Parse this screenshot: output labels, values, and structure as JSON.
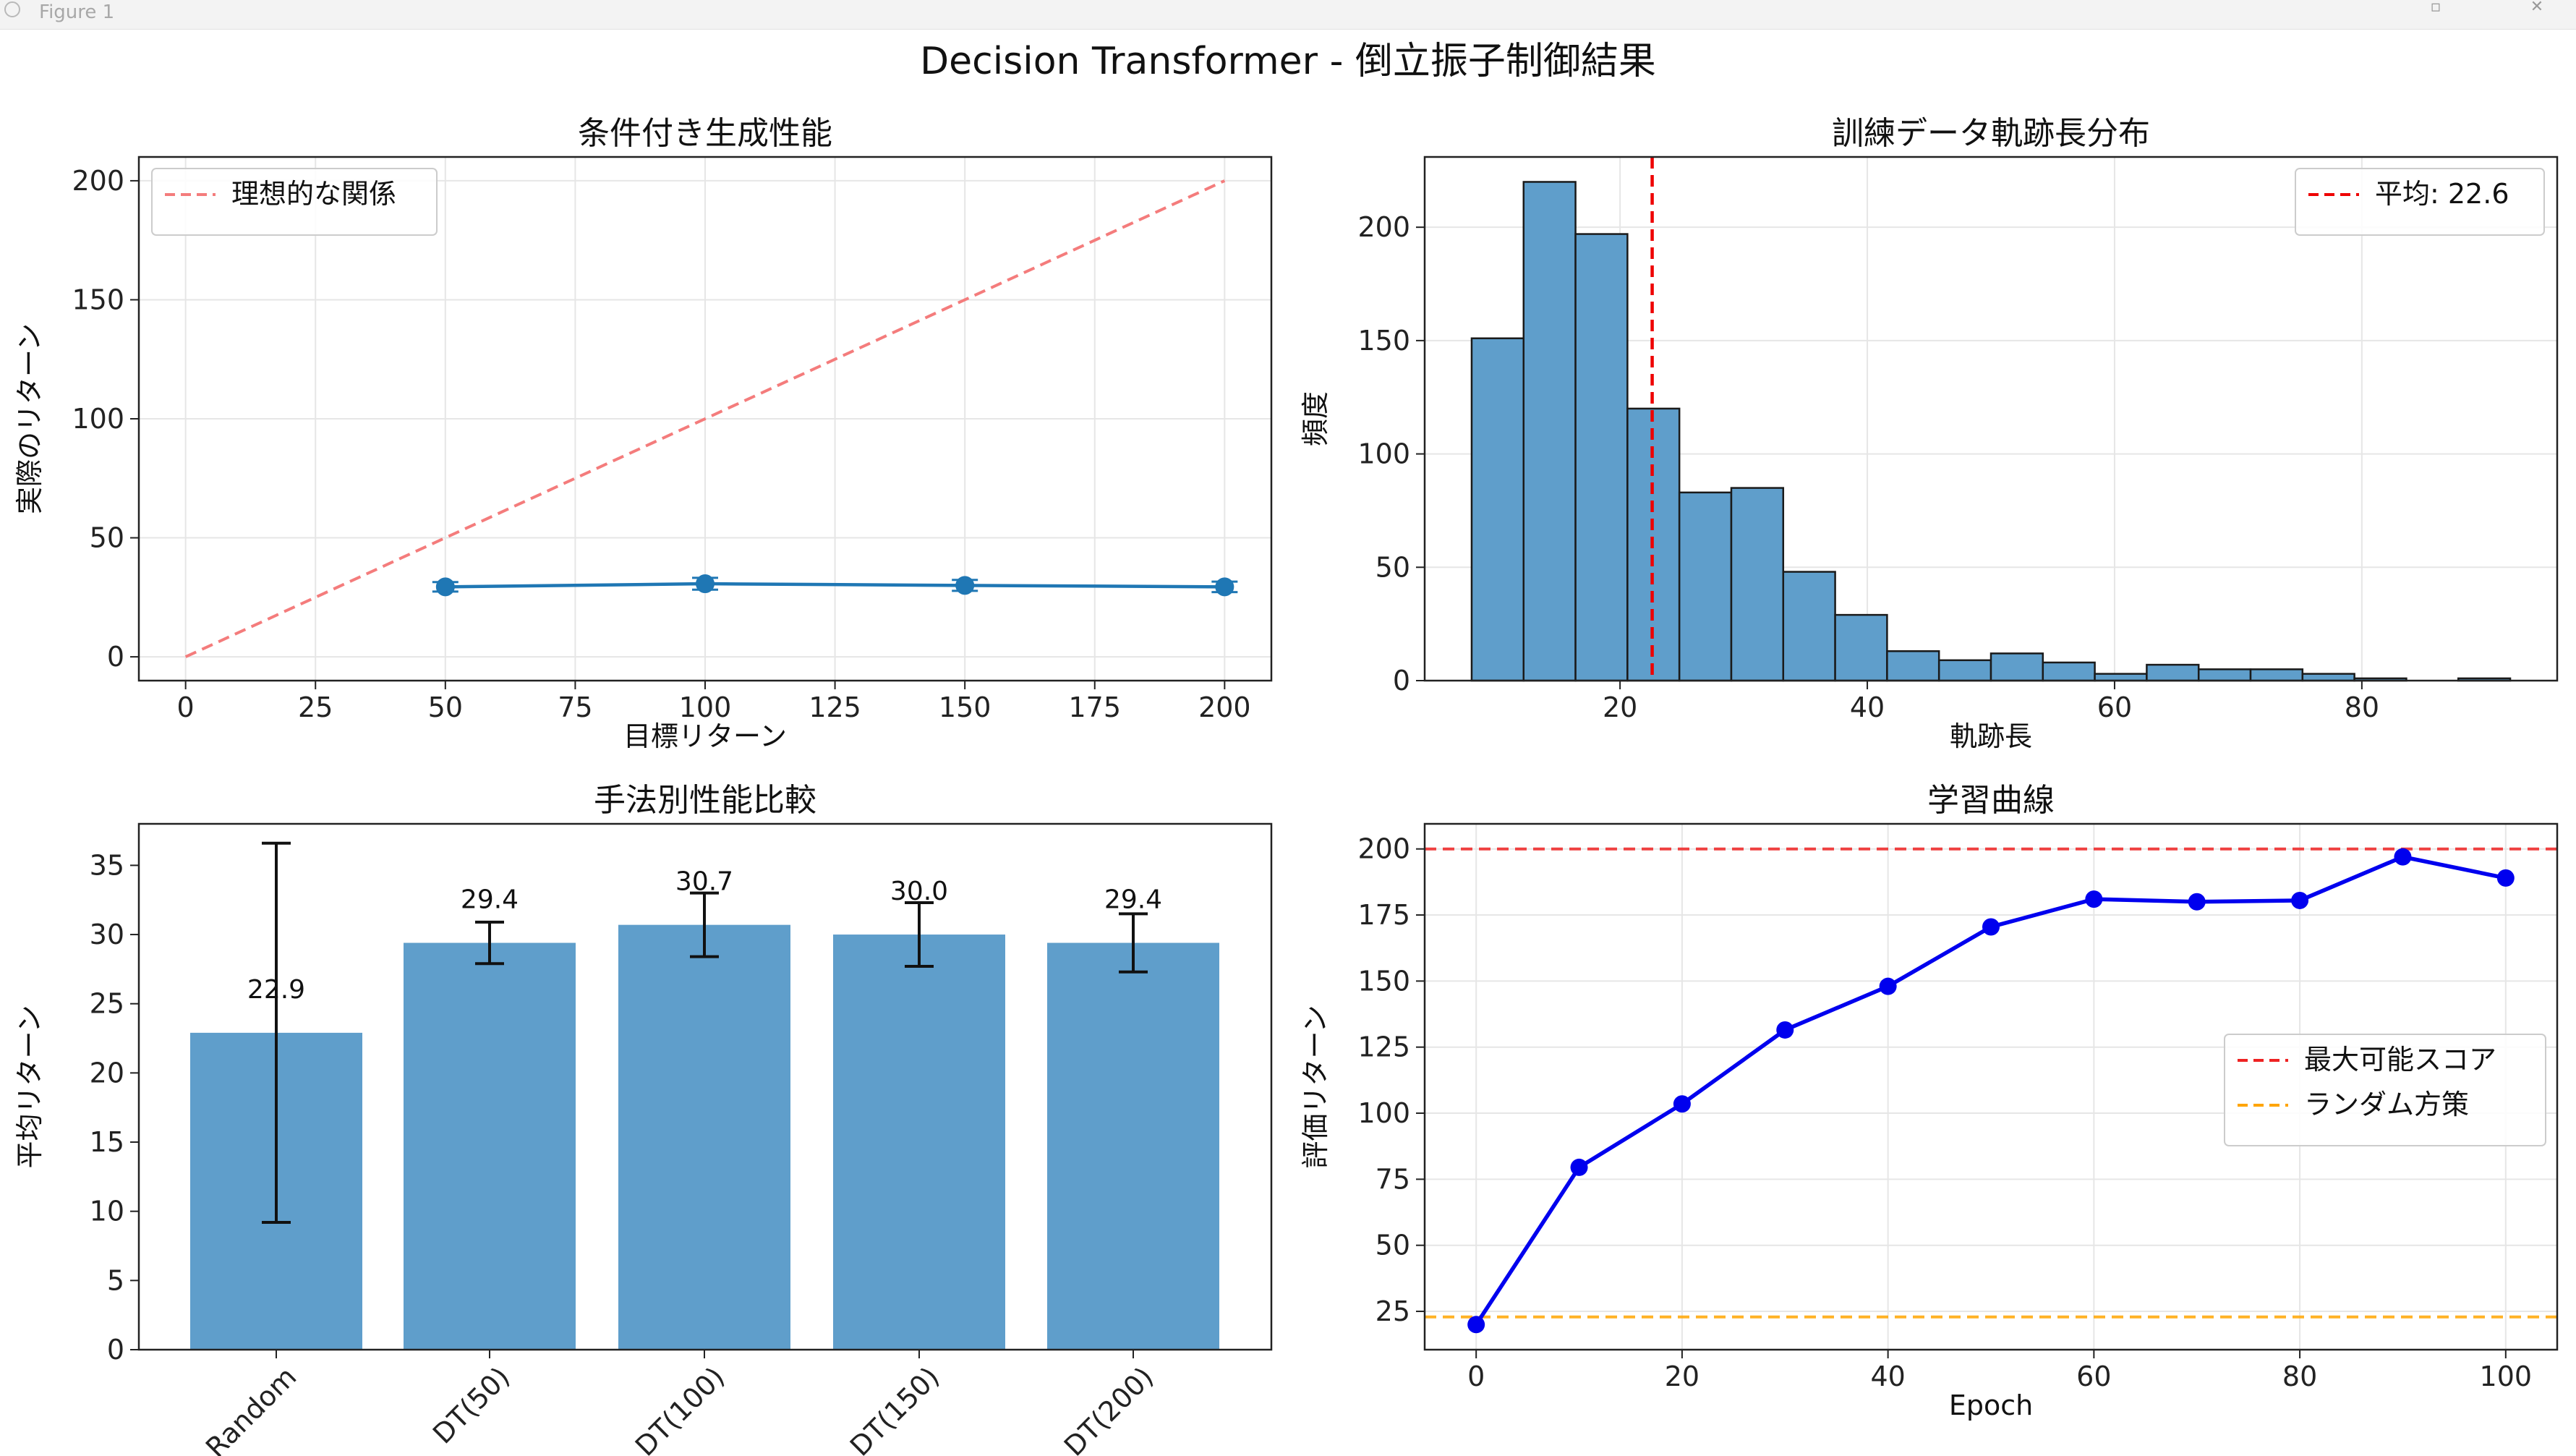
{
  "window": {
    "title": "Figure 1"
  },
  "figure": {
    "suptitle": "Decision Transformer - 倒立振子制御結果"
  },
  "colors": {
    "blue": "#1f77b4",
    "bar": "#5f9ecb",
    "ideal": "#f47c7c",
    "red": "#d62728",
    "pure_red": "#ee0000",
    "orange": "#ffa500",
    "curve": "#0000ee",
    "grid": "#e6e6e6"
  },
  "chart_data": [
    {
      "id": "ax1",
      "type": "line",
      "title": "条件付き生成性能",
      "xlabel": "目標リターン",
      "ylabel": "実際のリターン",
      "xlim": [
        -9,
        209
      ],
      "ylim": [
        -10,
        210
      ],
      "xticks": [
        0,
        25,
        50,
        75,
        100,
        125,
        150,
        175,
        200
      ],
      "yticks": [
        0,
        50,
        100,
        150,
        200
      ],
      "grid": true,
      "legend": {
        "placement": "upper-left",
        "entries": [
          {
            "label": "理想的な関係",
            "style": "dashed",
            "color": "#f47c7c"
          }
        ]
      },
      "series": [
        {
          "name": "理想的な関係",
          "style": "dashed",
          "x": [
            0,
            200
          ],
          "y": [
            0,
            200
          ]
        },
        {
          "style": "solid-marker-errorbar",
          "x": [
            50,
            100,
            150,
            200
          ],
          "y": [
            29.4,
            30.7,
            30.0,
            29.4
          ],
          "err": [
            2.0,
            2.5,
            2.3,
            2.2
          ]
        }
      ]
    },
    {
      "id": "ax2",
      "type": "bar",
      "subtype": "histogram",
      "title": "訓練データ軌跡長分布",
      "xlabel": "軌跡長",
      "ylabel": "頻度",
      "xlim": [
        4.2,
        95.8
      ],
      "ylim": [
        0,
        231
      ],
      "xticks": [
        20,
        40,
        60,
        80
      ],
      "yticks": [
        0,
        50,
        100,
        150,
        200
      ],
      "grid": true,
      "bin_edges": [
        8.0,
        12.2,
        16.4,
        20.6,
        24.8,
        29.0,
        33.2,
        37.4,
        41.6,
        45.8,
        50.0,
        54.2,
        58.4,
        62.6,
        66.8,
        71.0,
        75.2,
        79.4,
        83.6,
        87.8,
        92.0
      ],
      "counts": [
        151,
        220,
        197,
        120,
        83,
        85,
        48,
        29,
        13,
        9,
        12,
        8,
        3,
        7,
        5,
        5,
        3,
        1,
        0,
        1
      ],
      "mean_line": {
        "x": 22.6,
        "label": "平均: 22.6"
      },
      "legend": {
        "placement": "upper-right",
        "entries": [
          {
            "label": "平均: 22.6",
            "style": "dashed",
            "color": "#ee0000"
          }
        ]
      }
    },
    {
      "id": "ax3",
      "type": "bar",
      "title": "手法別性能比較",
      "xlabel": "",
      "ylabel": "平均リターン",
      "ylim": [
        0,
        38
      ],
      "yticks": [
        0,
        5,
        10,
        15,
        20,
        25,
        30,
        35
      ],
      "grid": false,
      "categories": [
        "Random",
        "DT(50)",
        "DT(100)",
        "DT(150)",
        "DT(200)"
      ],
      "values": [
        22.9,
        29.4,
        30.7,
        30.0,
        29.4
      ],
      "errors": [
        13.7,
        1.5,
        2.3,
        2.3,
        2.1
      ],
      "value_labels": [
        "22.9",
        "29.4",
        "30.7",
        "30.0",
        "29.4"
      ]
    },
    {
      "id": "ax4",
      "type": "line",
      "title": "学習曲線",
      "xlabel": "Epoch",
      "ylabel": "評価リターン",
      "xlim": [
        -5,
        105
      ],
      "ylim": [
        10.5,
        209.5
      ],
      "xticks": [
        0,
        20,
        40,
        60,
        80,
        100
      ],
      "yticks": [
        25,
        50,
        75,
        100,
        125,
        150,
        175,
        200
      ],
      "grid": true,
      "series": [
        {
          "style": "solid-marker",
          "x": [
            0,
            10,
            20,
            30,
            40,
            50,
            60,
            70,
            80,
            90,
            100
          ],
          "y": [
            20,
            79.5,
            103.5,
            131.5,
            148,
            170.5,
            181,
            180,
            180.5,
            197,
            189
          ]
        }
      ],
      "hlines": [
        {
          "y": 200,
          "label": "最大可能スコア",
          "color": "#ee2222"
        },
        {
          "y": 22.9,
          "label": "ランダム方策",
          "color": "#ffa500"
        }
      ],
      "legend": {
        "placement": "center-right",
        "entries": [
          {
            "label": "最大可能スコア",
            "style": "dashed",
            "color": "#ee2222"
          },
          {
            "label": "ランダム方策",
            "style": "dashed",
            "color": "#ffa500"
          }
        ]
      }
    }
  ]
}
